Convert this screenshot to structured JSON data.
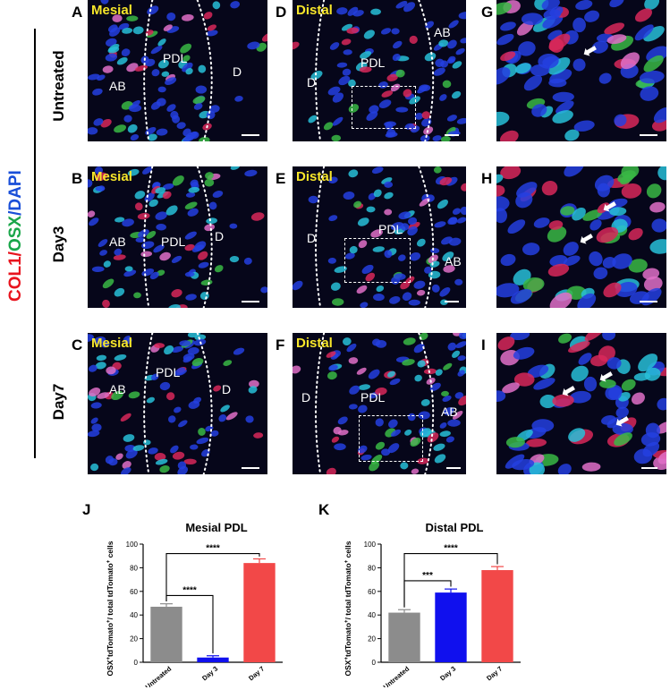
{
  "legend": {
    "parts": [
      {
        "text": "COL1",
        "color": "#e8141e"
      },
      {
        "text": "/",
        "color": "#e8141e"
      },
      {
        "text": "OSX",
        "color": "#1aa64a"
      },
      {
        "text": "/",
        "color": "#1a4fd8"
      },
      {
        "text": "DAPI",
        "color": "#1a4fd8"
      }
    ]
  },
  "rows": [
    {
      "label": "Untreated"
    },
    {
      "label": "Day3"
    },
    {
      "label": "Day7"
    }
  ],
  "panels": {
    "A": {
      "letter": "A",
      "tag": "Mesial",
      "labels": [
        "AB",
        "PDL",
        "D"
      ]
    },
    "B": {
      "letter": "B",
      "tag": "Mesial",
      "labels": [
        "AB",
        "PDL",
        "D"
      ]
    },
    "C": {
      "letter": "C",
      "tag": "Mesial",
      "labels": [
        "AB",
        "PDL",
        "D"
      ]
    },
    "D": {
      "letter": "D",
      "tag": "Distal",
      "labels": [
        "D",
        "PDL",
        "AB"
      ]
    },
    "E": {
      "letter": "E",
      "tag": "Distal",
      "labels": [
        "D",
        "PDL",
        "AB"
      ]
    },
    "F": {
      "letter": "F",
      "tag": "Distal",
      "labels": [
        "D",
        "PDL",
        "AB"
      ]
    },
    "G": {
      "letter": "G"
    },
    "H": {
      "letter": "H"
    },
    "I": {
      "letter": "I"
    }
  },
  "colors": {
    "bar_untreated": "#8c8c8c",
    "bar_day3": "#1010ee",
    "bar_day7": "#f24848",
    "tag_yellow": "#f7e62a",
    "background_micro": "#06061a"
  },
  "chart_data": [
    {
      "panel": "J",
      "type": "bar",
      "title": "Mesial PDL",
      "categories": [
        "Untreated",
        "Day 3",
        "Day 7"
      ],
      "values": [
        47,
        4,
        84
      ],
      "errors": [
        2.5,
        1.5,
        3.5
      ],
      "ylabel_parts": [
        "OSX",
        "+",
        "tdTomato",
        "+",
        "/ total tdTomato",
        "+",
        " cells"
      ],
      "ylim": [
        0,
        100
      ],
      "yticks": [
        "0",
        "20",
        "40",
        "60",
        "80",
        "100"
      ],
      "significance": [
        {
          "from": 0,
          "to": 1,
          "label": "****"
        },
        {
          "from": 0,
          "to": 2,
          "label": "****"
        }
      ]
    },
    {
      "panel": "K",
      "type": "bar",
      "title": "Distal PDL",
      "categories": [
        "Untreated",
        "Day 3",
        "Day 7"
      ],
      "values": [
        42,
        59,
        78
      ],
      "errors": [
        2.5,
        3,
        3
      ],
      "ylabel_parts": [
        "OSX",
        "+",
        "tdTomato",
        "+",
        "/ total tdTomato",
        "+",
        " cells"
      ],
      "ylim": [
        0,
        100
      ],
      "yticks": [
        "0",
        "20",
        "40",
        "60",
        "80",
        "100"
      ],
      "significance": [
        {
          "from": 0,
          "to": 1,
          "label": "***"
        },
        {
          "from": 0,
          "to": 2,
          "label": "****"
        }
      ]
    }
  ]
}
